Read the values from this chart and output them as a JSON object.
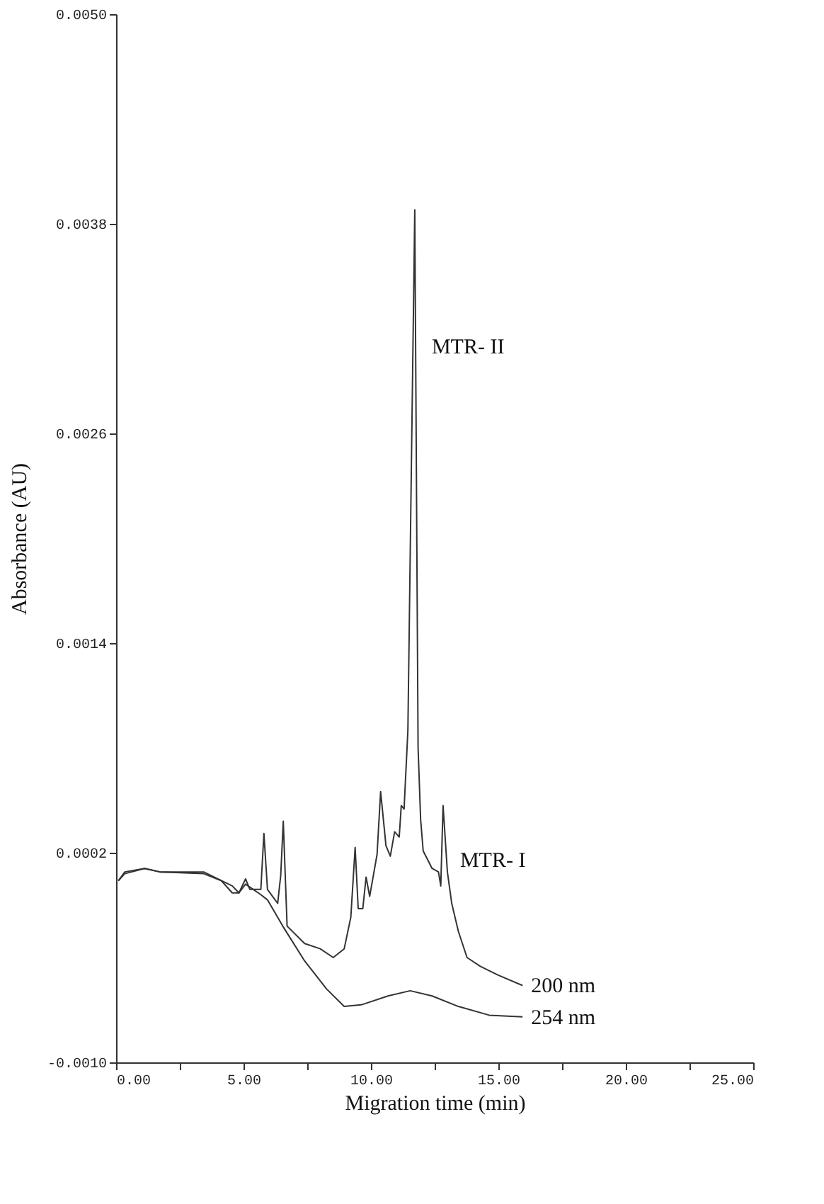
{
  "chart_data": {
    "type": "line",
    "xlabel": "Migration time (min)",
    "ylabel": "Absorbance (AU)",
    "xlim": [
      0,
      25
    ],
    "ylim": [
      -0.001,
      0.005
    ],
    "xticks": [
      {
        "value": 0,
        "label": "0.00"
      },
      {
        "value": 2.5,
        "label": null
      },
      {
        "value": 5,
        "label": "5.00"
      },
      {
        "value": 7.5,
        "label": null
      },
      {
        "value": 10,
        "label": "10.00"
      },
      {
        "value": 12.5,
        "label": null
      },
      {
        "value": 15,
        "label": "15.00"
      },
      {
        "value": 17.5,
        "label": null
      },
      {
        "value": 20,
        "label": "20.00"
      },
      {
        "value": 22.5,
        "label": null
      },
      {
        "value": 25,
        "label": "25.00"
      }
    ],
    "yticks": [
      {
        "value": -0.001,
        "label": "-0.0010"
      },
      {
        "value": 0.0002,
        "label": "0.0002"
      },
      {
        "value": 0.0014,
        "label": "0.0014"
      },
      {
        "value": 0.0026,
        "label": "0.0026"
      },
      {
        "value": 0.0038,
        "label": "0.0038"
      },
      {
        "value": 0.005,
        "label": "0.0050"
      }
    ],
    "grid": false,
    "marker": "none",
    "line_style": "solid",
    "series": [
      {
        "name": "200 nm",
        "color": "#333333",
        "x": [
          0.09,
          0.34,
          1.12,
          1.72,
          3.44,
          4.13,
          4.56,
          4.82,
          5.08,
          5.25,
          5.68,
          5.8,
          5.94,
          6.34,
          6.46,
          6.56,
          6.71,
          7.4,
          8.01,
          8.52,
          8.95,
          9.21,
          9.38,
          9.5,
          9.68,
          9.81,
          9.95,
          10.24,
          10.38,
          10.59,
          10.76,
          10.93,
          11.11,
          11.19,
          11.3,
          11.45,
          11.72,
          11.85,
          11.95,
          12.05,
          12.4,
          12.65,
          12.74,
          12.83,
          13.0,
          13.17,
          13.43,
          13.77,
          14.29,
          14.98,
          15.95
        ],
        "values": [
          4e-05,
          9e-05,
          0.00011,
          9e-05,
          9e-05,
          4e-05,
          -3e-05,
          -3e-05,
          5e-05,
          -1e-05,
          -1e-05,
          0.00031,
          -1e-05,
          -9e-05,
          7e-05,
          0.00038,
          -0.00022,
          -0.00032,
          -0.00035,
          -0.0004,
          -0.00035,
          -0.00017,
          0.00023,
          -0.00012,
          -0.00012,
          6e-05,
          -5e-05,
          0.00019,
          0.00055,
          0.00024,
          0.00018,
          0.00032,
          0.00029,
          0.00047,
          0.00045,
          0.0009,
          0.00388,
          0.0008,
          0.00039,
          0.00021,
          0.00011,
          9e-05,
          1e-05,
          0.00047,
          9e-05,
          -9e-05,
          -0.00025,
          -0.0004,
          -0.00045,
          -0.0005,
          -0.00056
        ]
      },
      {
        "name": "254 nm",
        "color": "#333333",
        "x": [
          0.09,
          0.34,
          1.12,
          1.72,
          3.44,
          4.13,
          4.56,
          4.82,
          5.08,
          5.68,
          5.94,
          6.54,
          7.4,
          8.26,
          8.95,
          9.64,
          10.67,
          11.54,
          12.4,
          13.43,
          14.64,
          15.95
        ],
        "values": [
          4e-05,
          8e-05,
          0.00011,
          9e-05,
          8e-05,
          4e-05,
          1e-05,
          -3e-05,
          2e-05,
          -4e-05,
          -7e-05,
          -0.00022,
          -0.00042,
          -0.00058,
          -0.00068,
          -0.00067,
          -0.00062,
          -0.00059,
          -0.00062,
          -0.00068,
          -0.00073,
          -0.00074
        ]
      }
    ],
    "annotations": [
      {
        "text": "MTR- II",
        "x": 11.72,
        "y": 0.0031
      },
      {
        "text": "MTR- I",
        "x": 12.83,
        "y": 0.00016
      }
    ]
  }
}
